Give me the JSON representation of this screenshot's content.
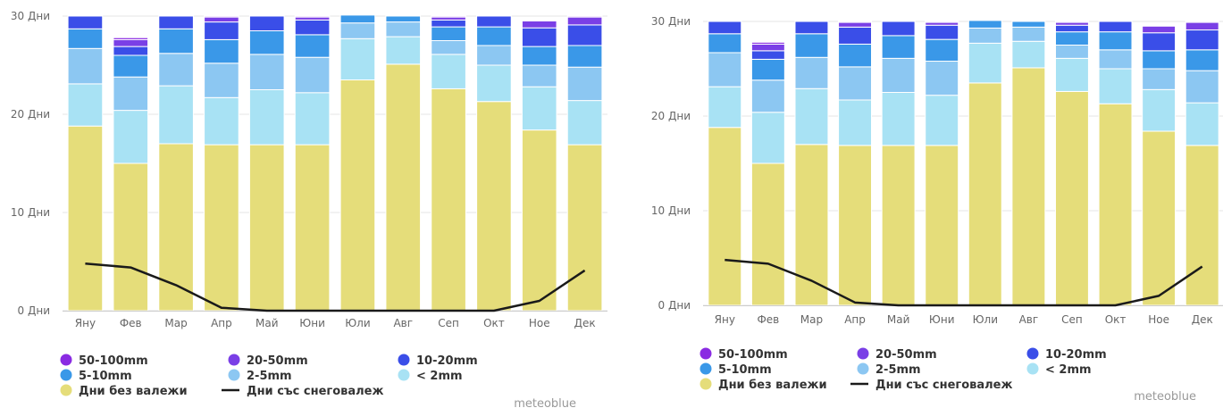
{
  "chart_data": [
    {
      "type": "bar",
      "stacked": true,
      "categories": [
        "Яну",
        "Фев",
        "Мар",
        "Апр",
        "Май",
        "Юни",
        "Юли",
        "Авг",
        "Сеп",
        "Окт",
        "Ное",
        "Дек"
      ],
      "ylim": [
        0,
        30
      ],
      "y_ticks": [
        {
          "value": 0,
          "label": "0 Дни"
        },
        {
          "value": 10,
          "label": "10 Дни"
        },
        {
          "value": 20,
          "label": "20 Дни"
        },
        {
          "value": 30,
          "label": "30 Дни"
        }
      ],
      "grid": true,
      "legend_position": "bottom",
      "series": [
        {
          "name": "Дни без валежи",
          "color": "#e5dd7a",
          "values": [
            18.8,
            15.0,
            17.0,
            16.9,
            16.9,
            16.9,
            23.5,
            25.1,
            22.6,
            21.3,
            18.4,
            16.9
          ]
        },
        {
          "name": "< 2mm",
          "color": "#a8e2f4",
          "values": [
            4.3,
            5.4,
            5.9,
            4.8,
            5.6,
            5.3,
            4.2,
            2.8,
            3.5,
            3.7,
            4.4,
            4.5
          ]
        },
        {
          "name": "2-5mm",
          "color": "#8cc7f2",
          "values": [
            3.6,
            3.4,
            3.3,
            3.5,
            3.6,
            3.6,
            1.6,
            1.5,
            1.4,
            2.0,
            2.2,
            3.4
          ]
        },
        {
          "name": "5-10mm",
          "color": "#3a98e8",
          "values": [
            2.0,
            2.2,
            2.5,
            2.4,
            2.4,
            2.3,
            0.8,
            0.6,
            1.4,
            1.9,
            1.9,
            2.2
          ]
        },
        {
          "name": "10-20mm",
          "color": "#3a4ee8",
          "values": [
            1.3,
            0.9,
            1.3,
            1.8,
            1.5,
            1.5,
            0.0,
            0.0,
            0.7,
            1.1,
            1.9,
            2.1
          ]
        },
        {
          "name": "20-50mm",
          "color": "#7a3fe6",
          "values": [
            0.0,
            0.7,
            0.0,
            0.5,
            0.0,
            0.3,
            0.0,
            0.0,
            0.3,
            0.0,
            0.7,
            0.8
          ]
        },
        {
          "name": "50-100mm",
          "color": "#8a2be2",
          "values": [
            0.0,
            0.2,
            0.0,
            0.1,
            0.0,
            0.1,
            0.0,
            0.0,
            0.1,
            0.0,
            0.0,
            0.1
          ]
        }
      ],
      "line_series": {
        "name": "Дни със снеговалеж",
        "color": "#1a1a1a",
        "values": [
          4.8,
          4.4,
          2.6,
          0.3,
          0.0,
          0.0,
          0.0,
          0.0,
          0.0,
          0.0,
          1.0,
          4.1
        ]
      },
      "legend": [
        {
          "label": "50-100mm",
          "color": "#8a2be2",
          "symbol": "dot"
        },
        {
          "label": "20-50mm",
          "color": "#7a3fe6",
          "symbol": "dot"
        },
        {
          "label": "10-20mm",
          "color": "#3a4ee8",
          "symbol": "dot"
        },
        {
          "label": "5-10mm",
          "color": "#3a98e8",
          "symbol": "dot"
        },
        {
          "label": "2-5mm",
          "color": "#8cc7f2",
          "symbol": "dot"
        },
        {
          "label": "< 2mm",
          "color": "#a8e2f4",
          "symbol": "dot"
        },
        {
          "label": "Дни без валежи",
          "color": "#e5dd7a",
          "symbol": "dot"
        },
        {
          "label": "Дни със снеговалеж",
          "color": "#1a1a1a",
          "symbol": "line"
        }
      ],
      "credit": "meteoblue"
    },
    {
      "type": "bar",
      "stacked": true,
      "categories": [
        "Яну",
        "Фев",
        "Мар",
        "Апр",
        "Май",
        "Юни",
        "Юли",
        "Авг",
        "Сеп",
        "Окт",
        "Ное",
        "Дек"
      ],
      "ylim": [
        0,
        30
      ],
      "y_ticks": [
        {
          "value": 0,
          "label": "0 Дни"
        },
        {
          "value": 10,
          "label": "10 Дни"
        },
        {
          "value": 20,
          "label": "20 Дни"
        },
        {
          "value": 30,
          "label": "30 Дни"
        }
      ],
      "grid": true,
      "legend_position": "bottom",
      "series": [
        {
          "name": "Дни без валежи",
          "color": "#e5dd7a",
          "values": [
            18.8,
            15.0,
            17.0,
            16.9,
            16.9,
            16.9,
            23.5,
            25.1,
            22.6,
            21.3,
            18.4,
            16.9
          ]
        },
        {
          "name": "< 2mm",
          "color": "#a8e2f4",
          "values": [
            4.3,
            5.4,
            5.9,
            4.8,
            5.6,
            5.3,
            4.2,
            2.8,
            3.5,
            3.7,
            4.4,
            4.5
          ]
        },
        {
          "name": "2-5mm",
          "color": "#8cc7f2",
          "values": [
            3.6,
            3.4,
            3.3,
            3.5,
            3.6,
            3.6,
            1.6,
            1.5,
            1.4,
            2.0,
            2.2,
            3.4
          ]
        },
        {
          "name": "5-10mm",
          "color": "#3a98e8",
          "values": [
            2.0,
            2.2,
            2.5,
            2.4,
            2.4,
            2.3,
            0.8,
            0.6,
            1.4,
            1.9,
            1.9,
            2.2
          ]
        },
        {
          "name": "10-20mm",
          "color": "#3a4ee8",
          "values": [
            1.3,
            0.9,
            1.3,
            1.8,
            1.5,
            1.5,
            0.0,
            0.0,
            0.7,
            1.1,
            1.9,
            2.1
          ]
        },
        {
          "name": "20-50mm",
          "color": "#7a3fe6",
          "values": [
            0.0,
            0.7,
            0.0,
            0.5,
            0.0,
            0.3,
            0.0,
            0.0,
            0.3,
            0.0,
            0.7,
            0.8
          ]
        },
        {
          "name": "50-100mm",
          "color": "#8a2be2",
          "values": [
            0.0,
            0.2,
            0.0,
            0.1,
            0.0,
            0.1,
            0.0,
            0.0,
            0.1,
            0.0,
            0.0,
            0.1
          ]
        }
      ],
      "line_series": {
        "name": "Дни със снеговалеж",
        "color": "#1a1a1a",
        "values": [
          4.8,
          4.4,
          2.6,
          0.3,
          0.0,
          0.0,
          0.0,
          0.0,
          0.0,
          0.0,
          1.0,
          4.1
        ]
      },
      "legend": [
        {
          "label": "50-100mm",
          "color": "#8a2be2",
          "symbol": "dot"
        },
        {
          "label": "20-50mm",
          "color": "#7a3fe6",
          "symbol": "dot"
        },
        {
          "label": "10-20mm",
          "color": "#3a4ee8",
          "symbol": "dot"
        },
        {
          "label": "5-10mm",
          "color": "#3a98e8",
          "symbol": "dot"
        },
        {
          "label": "2-5mm",
          "color": "#8cc7f2",
          "symbol": "dot"
        },
        {
          "label": "< 2mm",
          "color": "#a8e2f4",
          "symbol": "dot"
        },
        {
          "label": "Дни без валежи",
          "color": "#e5dd7a",
          "symbol": "dot"
        },
        {
          "label": "Дни със снеговалеж",
          "color": "#1a1a1a",
          "symbol": "line"
        }
      ],
      "credit": "meteoblue"
    }
  ]
}
